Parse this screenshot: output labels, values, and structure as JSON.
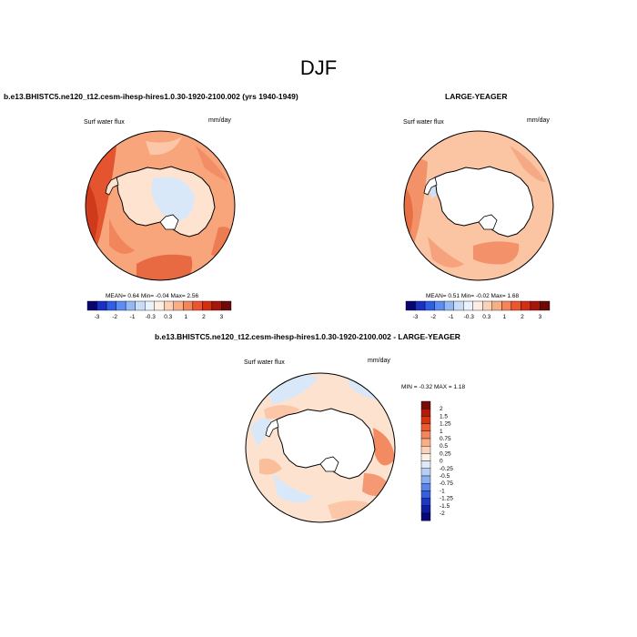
{
  "page_title": "DJF",
  "panels": [
    {
      "title": "b.e13.BHISTC5.ne120_t12.cesm-ihesp-hires1.0.30-1920-2100.002 (yrs 1940-1949)",
      "left_label": "Surf water flux",
      "units": "mm/day",
      "stats": {
        "mean": "0.64",
        "min": "-0.04",
        "max": "2.56"
      },
      "stats_text": "MEAN=   0.64   Min=  -0.04   Max=   2.56"
    },
    {
      "title": "LARGE-YEAGER",
      "left_label": "Surf water flux",
      "units": "mm/day",
      "stats": {
        "mean": "0.51",
        "min": "-0.02",
        "max": "1.68"
      },
      "stats_text": "MEAN=   0.51   Min=  -0.02   Max=   1.68"
    },
    {
      "title": "b.e13.BHISTC5.ne120_t12.cesm-ihesp-hires1.0.30-1920-2100.002 - LARGE-YEAGER",
      "left_label": "Surf water flux",
      "units": "mm/day",
      "stats": {
        "min": "-0.32",
        "max": "1.18"
      },
      "stats_text": "MIN =  -0.32 MAX =   1.18"
    }
  ],
  "colorbar_horizontal": {
    "labels": [
      "-3",
      "-2",
      "-1",
      "-0.3",
      "0.3",
      "1",
      "2",
      "3"
    ],
    "colors": [
      "#08066e",
      "#1a2fc4",
      "#2f5ee6",
      "#5b8ef0",
      "#94b8f5",
      "#c8ddf8",
      "#eaf2fb",
      "#fdeee3",
      "#fcd2b6",
      "#f9ad85",
      "#f5845a",
      "#ec5530",
      "#d42e12",
      "#a8150a",
      "#6e0a05"
    ]
  },
  "colorbar_vertical": {
    "labels": [
      "2",
      "1.5",
      "1.25",
      "1",
      "0.75",
      "0.5",
      "0.25",
      "0",
      "-0.25",
      "-0.5",
      "-0.75",
      "-1",
      "-1.25",
      "-1.5",
      "-2"
    ],
    "colors": [
      "#7a0b05",
      "#b41a0c",
      "#d6330f",
      "#ec5a30",
      "#f5855c",
      "#f9ad85",
      "#fcd2b6",
      "#fdf0e5",
      "#dde8f8",
      "#b6cdf4",
      "#8aaef0",
      "#5a85ea",
      "#345fe0",
      "#1c38c8",
      "#0e1ea0",
      "#060a78"
    ]
  }
}
